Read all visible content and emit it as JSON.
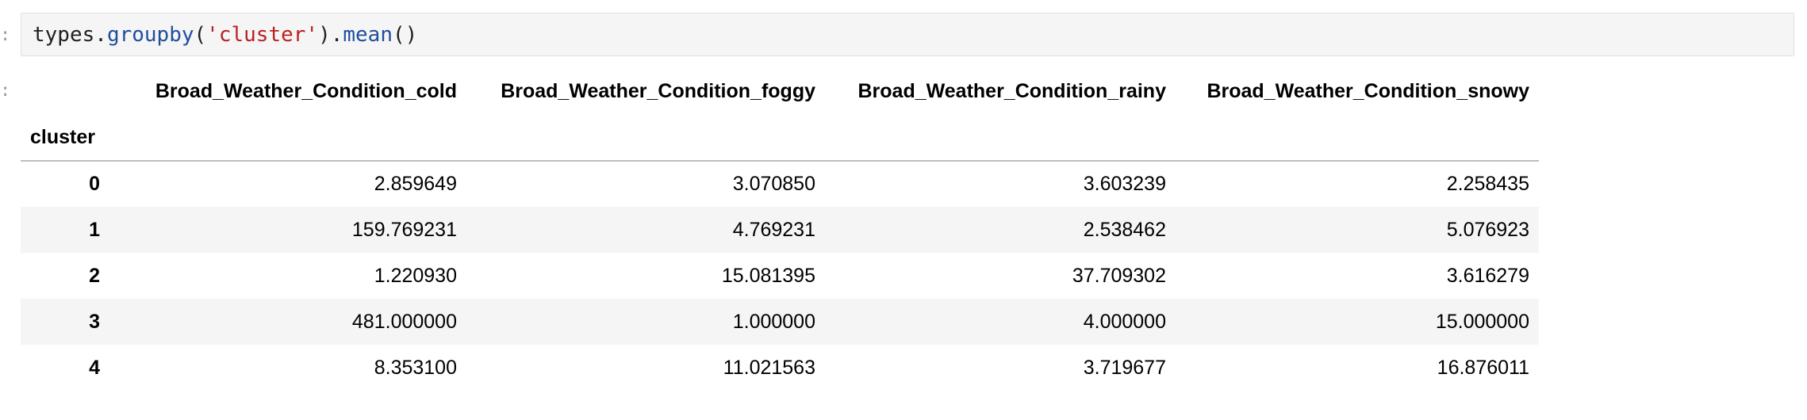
{
  "prompts": {
    "input": ":",
    "output": ":"
  },
  "input_cell": {
    "tokens": [
      {
        "text": "types",
        "kind": "var"
      },
      {
        "text": ".",
        "kind": "punct"
      },
      {
        "text": "groupby",
        "kind": "fn"
      },
      {
        "text": "(",
        "kind": "punct"
      },
      {
        "text": "'cluster'",
        "kind": "str"
      },
      {
        "text": ")",
        "kind": "punct"
      },
      {
        "text": ".",
        "kind": "punct"
      },
      {
        "text": "mean",
        "kind": "fn"
      },
      {
        "text": "()",
        "kind": "punct"
      }
    ]
  },
  "table": {
    "columns": [
      "Broad_Weather_Condition_cold",
      "Broad_Weather_Condition_foggy",
      "Broad_Weather_Condition_rainy",
      "Broad_Weather_Condition_snowy"
    ],
    "index_name": "cluster",
    "rows": [
      {
        "index": "0",
        "values": [
          "2.859649",
          "3.070850",
          "3.603239",
          "2.258435"
        ]
      },
      {
        "index": "1",
        "values": [
          "159.769231",
          "4.769231",
          "2.538462",
          "5.076923"
        ]
      },
      {
        "index": "2",
        "values": [
          "1.220930",
          "15.081395",
          "37.709302",
          "3.616279"
        ]
      },
      {
        "index": "3",
        "values": [
          "481.000000",
          "1.000000",
          "4.000000",
          "15.000000"
        ]
      },
      {
        "index": "4",
        "values": [
          "8.353100",
          "11.021563",
          "3.719677",
          "16.876011"
        ]
      }
    ]
  },
  "colors": {
    "code_background": "#f5f5f5",
    "string_literal": "#ba2121",
    "function_name": "#1f4e9c",
    "striped_row": "#f5f5f5"
  }
}
